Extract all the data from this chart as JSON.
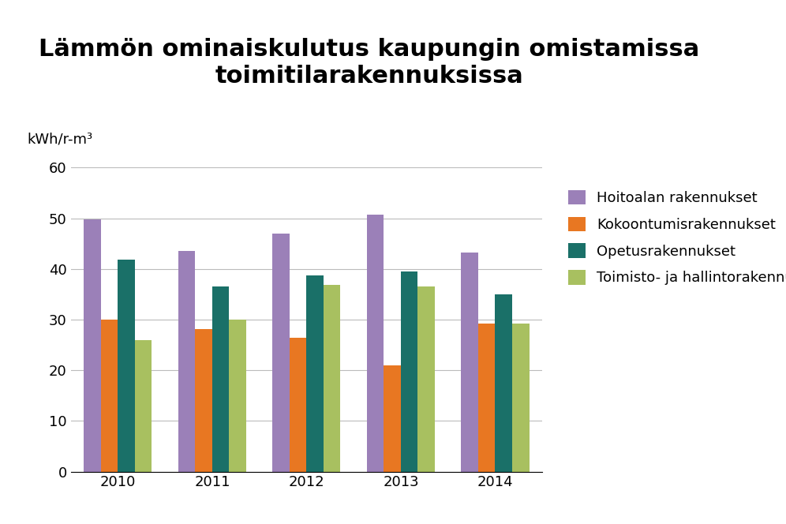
{
  "title": "Lämmön ominaiskulutus kaupungin omistamissa\ntoimitilarakennuksissa",
  "ylabel": "kWh/r-m³",
  "years": [
    2010,
    2011,
    2012,
    2013,
    2014
  ],
  "series": {
    "Hoitoalan rakennukset": [
      49.8,
      43.5,
      47.0,
      50.8,
      43.3
    ],
    "Kokoontumisrakennukset": [
      30.0,
      28.2,
      26.5,
      21.0,
      29.3
    ],
    "Opetusrakennukset": [
      41.8,
      36.5,
      38.8,
      39.5,
      35.0
    ],
    "Toimisto- ja hallintorakennukset": [
      26.0,
      30.0,
      36.8,
      36.5,
      29.2
    ]
  },
  "colors": {
    "Hoitoalan rakennukset": "#9B80B8",
    "Kokoontumisrakennukset": "#E87722",
    "Opetusrakennukset": "#1A7068",
    "Toimisto- ja hallintorakennukset": "#A8C060"
  },
  "ylim": [
    0,
    60
  ],
  "yticks": [
    0,
    10,
    20,
    30,
    40,
    50,
    60
  ],
  "title_fontsize": 22,
  "tick_fontsize": 13,
  "legend_fontsize": 13,
  "ylabel_fontsize": 13,
  "bar_width": 0.18,
  "background_color": "#ffffff"
}
